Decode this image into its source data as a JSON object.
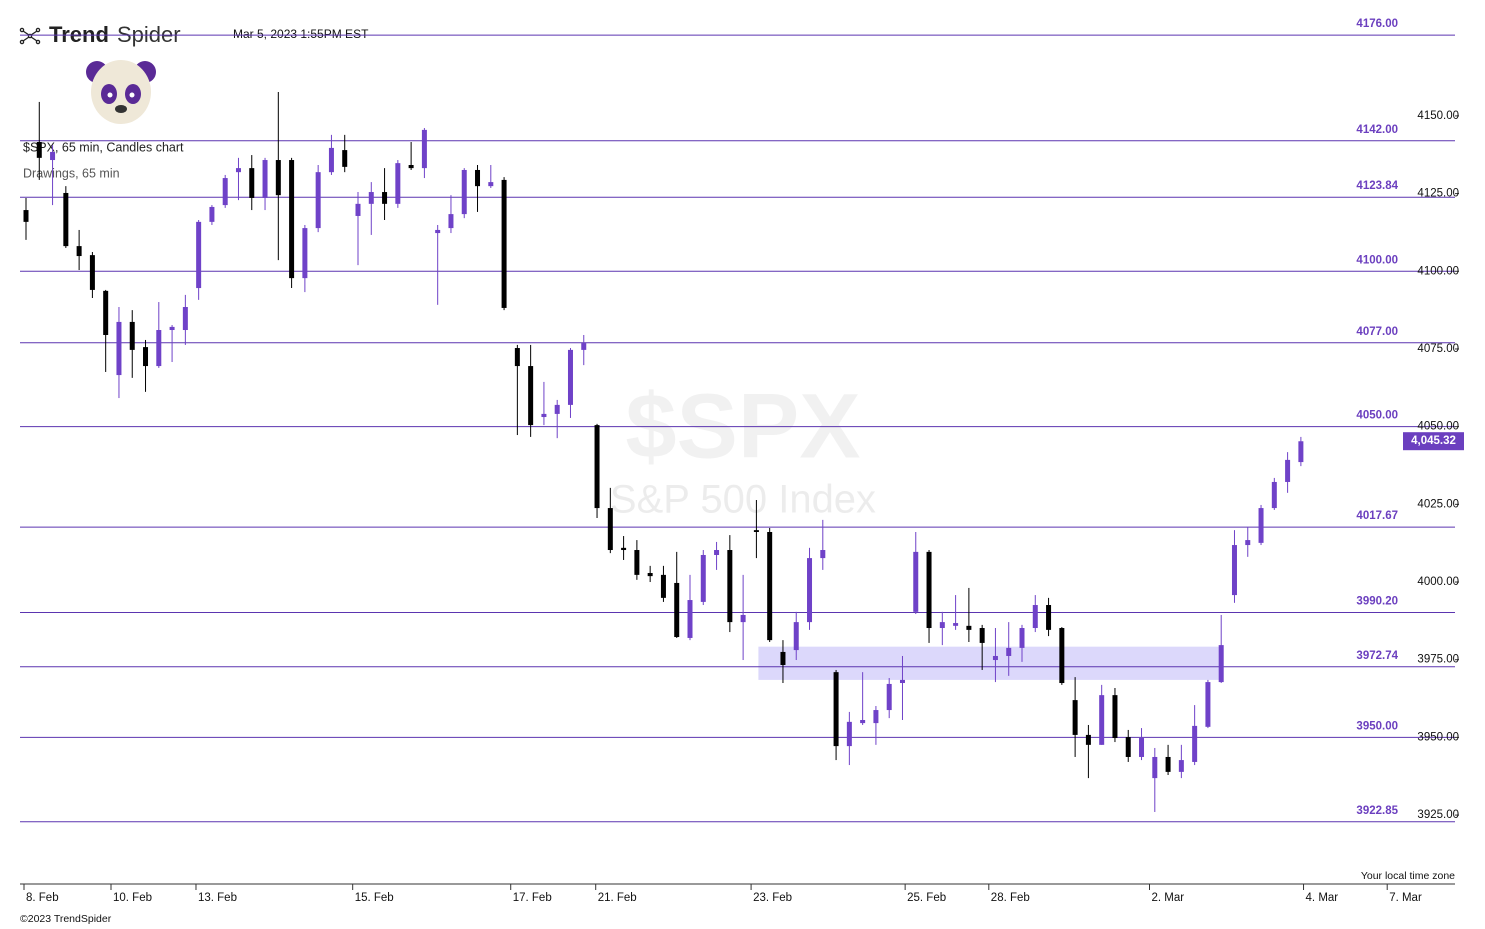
{
  "header": {
    "brand_bold": "Trend",
    "brand_light": "Spider",
    "timestamp": "Mar 5, 2023 1:55PM EST",
    "symbol_line": "$SPX, 65 min, Candles chart",
    "drawings_line": "Drawings, 65 min",
    "watermark_symbol": "$SPX",
    "watermark_name": "S&P 500 Index",
    "timezone_note": "Your local time zone",
    "copyright": "©2023 TrendSpider"
  },
  "chart_data": {
    "type": "candlestick",
    "up_color": "#6f42c8",
    "down_color": "#000000",
    "ylim": [
      3902.5,
      4187.3
    ],
    "yticks": [
      {
        "value": 4150,
        "label": "4150.00"
      },
      {
        "value": 4125,
        "label": "4125.00"
      },
      {
        "value": 4100,
        "label": "4100.00"
      },
      {
        "value": 4075,
        "label": "4075.00"
      },
      {
        "value": 4050,
        "label": "4050.00"
      },
      {
        "value": 4025,
        "label": "4025.00"
      },
      {
        "value": 4000,
        "label": "4000.00"
      },
      {
        "value": 3975,
        "label": "3975.00"
      },
      {
        "value": 3950,
        "label": "3950.00"
      },
      {
        "value": 3925,
        "label": "3925.00"
      }
    ],
    "xticks": [
      {
        "value": -0.15,
        "label": "8. Feb"
      },
      {
        "value": 6.4,
        "label": "10. Feb"
      },
      {
        "value": 12.8,
        "label": "13. Feb"
      },
      {
        "value": 24.6,
        "label": "15. Feb"
      },
      {
        "value": 36.5,
        "label": "17. Feb"
      },
      {
        "value": 42.9,
        "label": "21. Feb"
      },
      {
        "value": 54.6,
        "label": "23. Feb"
      },
      {
        "value": 66.2,
        "label": "25. Feb"
      },
      {
        "value": 72.5,
        "label": "28. Feb"
      },
      {
        "value": 84.6,
        "label": "2. Mar"
      },
      {
        "value": 96.2,
        "label": "4. Mar"
      },
      {
        "value": 102.5,
        "label": "7. Mar"
      }
    ],
    "levels": [
      {
        "value": 4176,
        "label": "4176.00"
      },
      {
        "value": 4142,
        "label": "4142.00"
      },
      {
        "value": 4123.84,
        "label": "4123.84"
      },
      {
        "value": 4100,
        "label": "4100.00"
      },
      {
        "value": 4077,
        "label": "4077.00"
      },
      {
        "value": 4050,
        "label": "4050.00"
      },
      {
        "value": 4017.67,
        "label": "4017.67"
      },
      {
        "value": 3990.2,
        "label": "3990.20"
      },
      {
        "value": 3972.74,
        "label": "3972.74"
      },
      {
        "value": 3950,
        "label": "3950.00"
      },
      {
        "value": 3922.85,
        "label": "3922.85"
      }
    ],
    "level_color": "#5b35b0",
    "zone": {
      "high": 3979.2,
      "low": 3968.5,
      "color": "#dcd8fb"
    },
    "last_price": {
      "value": 4045.32,
      "label": "4,045.32",
      "color": "#6b3fbf"
    },
    "open": [
      4119.7,
      4141.6,
      4135.8,
      4125.2,
      4108.1,
      4105.2,
      4093.7,
      4066.6,
      4083.7,
      4075.6,
      4069.5,
      4081.1,
      4081.1,
      4094.6,
      4115.9,
      4121.3,
      4131.9,
      4133.2,
      4123.6,
      4135.8,
      4135.8,
      4097.8,
      4113.9,
      4131.9,
      4139.0,
      4117.8,
      4121.7,
      4125.5,
      4121.7,
      4134.2,
      4133.2,
      4112.3,
      4113.9,
      4118.4,
      4132.6,
      4127.4,
      4129.4,
      4075.3,
      4069.5,
      4053.1,
      4054.1,
      4057.0,
      4074.7,
      4050.5,
      4023.8,
      4011.0,
      4010.3,
      4002.9,
      4002.3,
      3999.7,
      3982.0,
      3993.6,
      4008.7,
      4010.3,
      3987.1,
      4016.7,
      4016.1,
      3977.5,
      3978.1,
      3987.1,
      4007.7,
      3971.0,
      3947.2,
      3954.6,
      3954.6,
      3958.8,
      3967.5,
      3990.4,
      4009.7,
      3985.2,
      3985.9,
      3985.9,
      3985.2,
      3974.9,
      3976.2,
      3978.8,
      3985.2,
      3992.6,
      3985.2,
      3962.0,
      3950.8,
      3947.6,
      3963.6,
      3950.1,
      3943.7,
      3936.9,
      3943.7,
      3938.9,
      3942.1,
      3953.4,
      3967.8,
      3995.8,
      4011.9,
      4012.6,
      4023.8,
      4032.2,
      4038.6
    ],
    "high": [
      4123.6,
      4154.5,
      4140.6,
      4127.4,
      4113.3,
      4106.2,
      4094.0,
      4088.5,
      4087.5,
      4077.9,
      4090.1,
      4082.7,
      4092.4,
      4116.5,
      4121.3,
      4131.0,
      4136.5,
      4137.4,
      4136.5,
      4157.7,
      4136.5,
      4114.9,
      4134.2,
      4143.9,
      4143.9,
      4125.5,
      4128.7,
      4133.2,
      4135.8,
      4141.6,
      4146.1,
      4114.9,
      4124.5,
      4133.2,
      4134.2,
      4134.2,
      4130.3,
      4076.3,
      4076.3,
      4064.4,
      4058.6,
      4075.3,
      4079.5,
      4050.9,
      4030.3,
      4014.8,
      4013.5,
      4005.2,
      4005.2,
      4009.7,
      4002.3,
      4010.3,
      4012.9,
      4015.1,
      4002.3,
      4026.4,
      4017.4,
      3981.3,
      3990.4,
      4011.0,
      4020.0,
      3971.7,
      3958.2,
      3971.0,
      3960.1,
      3969.1,
      3976.2,
      4016.1,
      4010.3,
      3990.4,
      3995.8,
      3998.1,
      3986.2,
      3985.2,
      3987.1,
      3986.2,
      3995.8,
      3994.9,
      3985.5,
      3969.4,
      3954.0,
      3966.9,
      3965.9,
      3952.4,
      3953.0,
      3946.6,
      3947.6,
      3947.6,
      3960.4,
      3968.5,
      3989.4,
      4016.7,
      4017.7,
      4024.8,
      4033.5,
      4041.8,
      4046.7
    ],
    "low": [
      4110.1,
      4129.4,
      4121.3,
      4107.5,
      4100.4,
      4091.4,
      4067.6,
      4059.2,
      4065.7,
      4061.2,
      4068.9,
      4070.8,
      4076.3,
      4090.8,
      4114.9,
      4120.4,
      4122.9,
      4119.7,
      4119.7,
      4103.6,
      4094.6,
      4093.3,
      4112.6,
      4131.0,
      4131.9,
      4102.0,
      4111.7,
      4116.5,
      4120.4,
      4132.6,
      4130.0,
      4089.2,
      4112.3,
      4117.1,
      4119.1,
      4126.8,
      4087.5,
      4047.3,
      4046.7,
      4050.5,
      4046.3,
      4052.8,
      4069.8,
      4020.6,
      4009.3,
      4007.1,
      4000.7,
      4000.0,
      3993.6,
      3982.0,
      3981.3,
      3992.6,
      4003.9,
      3983.9,
      3974.9,
      4007.7,
      3980.7,
      3967.5,
      3974.9,
      3984.6,
      4003.9,
      3942.7,
      3941.1,
      3954.0,
      3947.6,
      3956.2,
      3955.6,
      3989.7,
      3980.4,
      3979.7,
      3984.6,
      3980.7,
      3971.7,
      3967.8,
      3969.8,
      3974.3,
      3983.9,
      3982.6,
      3966.9,
      3943.7,
      3936.9,
      3947.6,
      3948.5,
      3942.1,
      3942.7,
      3926.0,
      3937.9,
      3936.9,
      3941.1,
      3953.0,
      3967.5,
      3993.3,
      4008.1,
      4011.9,
      4023.2,
      4028.7,
      4037.3
    ],
    "close": [
      4115.9,
      4136.5,
      4138.4,
      4108.1,
      4104.9,
      4094.0,
      4079.5,
      4083.7,
      4074.7,
      4069.5,
      4081.1,
      4082.1,
      4088.5,
      4115.9,
      4120.7,
      4130.0,
      4133.2,
      4123.6,
      4135.8,
      4124.5,
      4097.8,
      4113.9,
      4131.9,
      4139.7,
      4133.6,
      4121.7,
      4125.5,
      4121.7,
      4134.8,
      4133.2,
      4145.5,
      4113.3,
      4118.4,
      4132.6,
      4127.4,
      4128.7,
      4088.2,
      4069.5,
      4050.5,
      4054.1,
      4057.0,
      4074.7,
      4076.9,
      4023.8,
      4010.3,
      4010.3,
      4002.3,
      4001.9,
      3994.9,
      3982.3,
      3994.2,
      4008.7,
      4010.3,
      3987.1,
      3989.4,
      4016.1,
      3981.3,
      3973.3,
      3987.1,
      4007.7,
      4010.3,
      3947.2,
      3955.0,
      3955.6,
      3958.8,
      3967.2,
      3968.5,
      4009.7,
      3985.2,
      3987.1,
      3986.8,
      3984.6,
      3980.4,
      3976.2,
      3978.8,
      3985.2,
      3992.6,
      3984.6,
      3967.5,
      3950.8,
      3947.6,
      3963.6,
      3949.8,
      3943.7,
      3949.8,
      3943.7,
      3938.9,
      3942.7,
      3953.7,
      3967.8,
      3979.7,
      4011.9,
      4013.5,
      4023.8,
      4032.2,
      4039.3,
      4045.3
    ]
  }
}
